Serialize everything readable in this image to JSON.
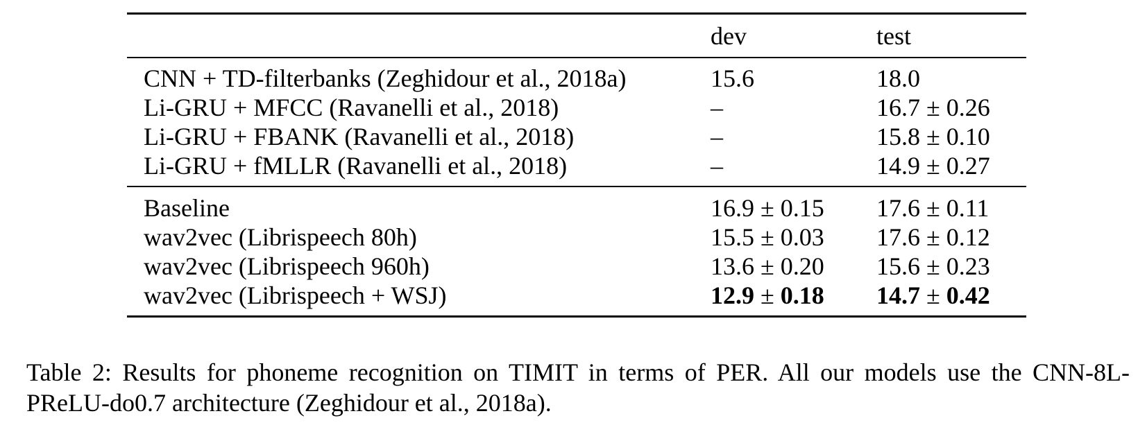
{
  "table": {
    "header": {
      "model": "",
      "dev": "dev",
      "test": "test"
    },
    "group1": [
      {
        "model": "CNN + TD-filterbanks (Zeghidour et al., 2018a)",
        "dev": "15.6",
        "test": "18.0"
      },
      {
        "model": "Li-GRU + MFCC (Ravanelli et al., 2018)",
        "dev": "–",
        "test": "16.7 ± 0.26"
      },
      {
        "model": "Li-GRU + FBANK (Ravanelli et al., 2018)",
        "dev": "–",
        "test": "15.8 ± 0.10"
      },
      {
        "model": "Li-GRU + fMLLR (Ravanelli et al., 2018)",
        "dev": "–",
        "test": "14.9 ± 0.27"
      }
    ],
    "group2": [
      {
        "model": "Baseline",
        "dev": "16.9 ± 0.15",
        "test": "17.6 ± 0.11"
      },
      {
        "model": "wav2vec (Librispeech 80h)",
        "dev": "15.5 ± 0.03",
        "test": "17.6 ± 0.12"
      },
      {
        "model": "wav2vec (Librispeech 960h)",
        "dev": "13.6 ± 0.20",
        "test": "15.6 ± 0.23"
      }
    ],
    "best_row": {
      "model": "wav2vec (Librispeech + WSJ)",
      "dev_mean": "12.9",
      "dev_pm": " ± ",
      "dev_std": "0.18",
      "test_mean": "14.7",
      "test_pm": " ± ",
      "test_std": "0.42"
    }
  },
  "caption": "Table 2: Results for phoneme recognition on TIMIT in terms of PER. All our models use the CNN-8L-PReLU-do0.7 architecture (Zeghidour et al., 2018a)."
}
